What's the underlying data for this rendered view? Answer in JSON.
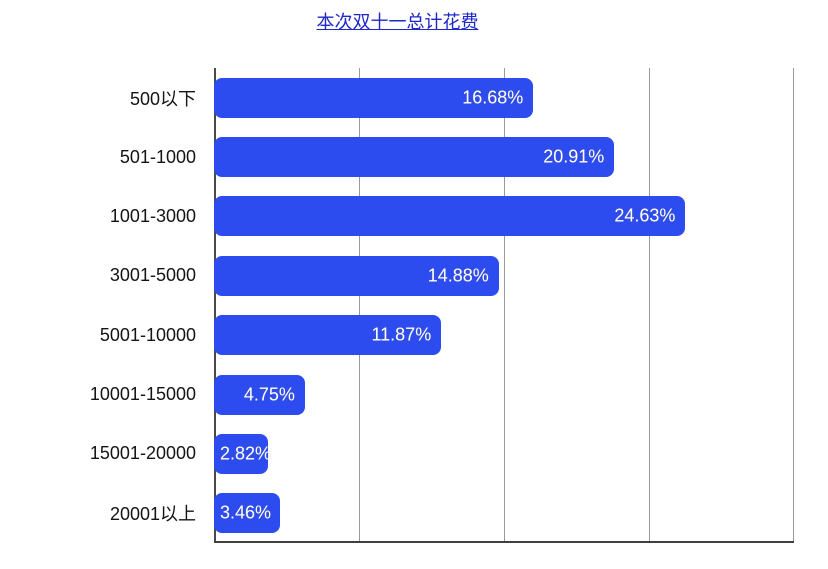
{
  "title": {
    "text": "本次双十一总计花费",
    "color": "#1e28c8"
  },
  "chart_data": {
    "type": "bar",
    "orientation": "horizontal",
    "title": "本次双十一总计花费",
    "categories": [
      "500以下",
      "501-1000",
      "1001-3000",
      "3001-5000",
      "5001-10000",
      "10001-15000",
      "15001-20000",
      "20001以上"
    ],
    "values": [
      16.68,
      20.91,
      24.63,
      14.88,
      11.87,
      4.75,
      2.82,
      3.46
    ],
    "value_labels": [
      "16.68%",
      "20.91%",
      "24.63%",
      "14.88%",
      "11.87%",
      "4.75%",
      "2.82%",
      "3.46%"
    ],
    "xlabel": "",
    "ylabel": "",
    "xlim": [
      0,
      30.3
    ],
    "grid": true,
    "gridline_positions_pct": [
      0,
      25,
      50,
      75,
      100
    ],
    "legend": "none",
    "bar_color": "#2d4cf0",
    "value_label_color": "#ffffff",
    "category_label_color": "#141414",
    "gridline_color": "#9a9a9a",
    "axis_color": "#3f3f3f"
  }
}
